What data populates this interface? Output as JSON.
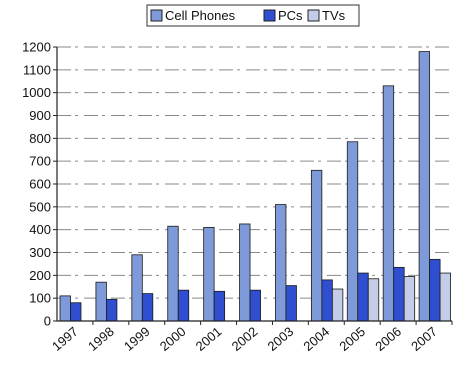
{
  "chart_data": {
    "type": "bar",
    "categories": [
      "1997",
      "1998",
      "1999",
      "2000",
      "2001",
      "2002",
      "2003",
      "2004",
      "2005",
      "2006",
      "2007"
    ],
    "series": [
      {
        "name": "Cell Phones",
        "values": [
          110,
          170,
          290,
          415,
          410,
          425,
          510,
          660,
          785,
          1030,
          1180
        ]
      },
      {
        "name": "PCs",
        "values": [
          80,
          95,
          120,
          135,
          130,
          135,
          155,
          180,
          210,
          235,
          270
        ]
      },
      {
        "name": "TVs",
        "values": [
          0,
          0,
          0,
          0,
          0,
          0,
          0,
          140,
          185,
          195,
          210
        ]
      }
    ],
    "yticks": [
      "0",
      "100",
      "200",
      "300",
      "400",
      "500",
      "600",
      "700",
      "800",
      "900",
      "1000",
      "1100",
      "1200"
    ],
    "ylim": [
      0,
      1200
    ],
    "legend_position": "top",
    "grid": true,
    "colors": {
      "Cell Phones": "#7f9ad8",
      "PCs": "#2f4fd0",
      "TVs": "#c3cde8"
    }
  }
}
